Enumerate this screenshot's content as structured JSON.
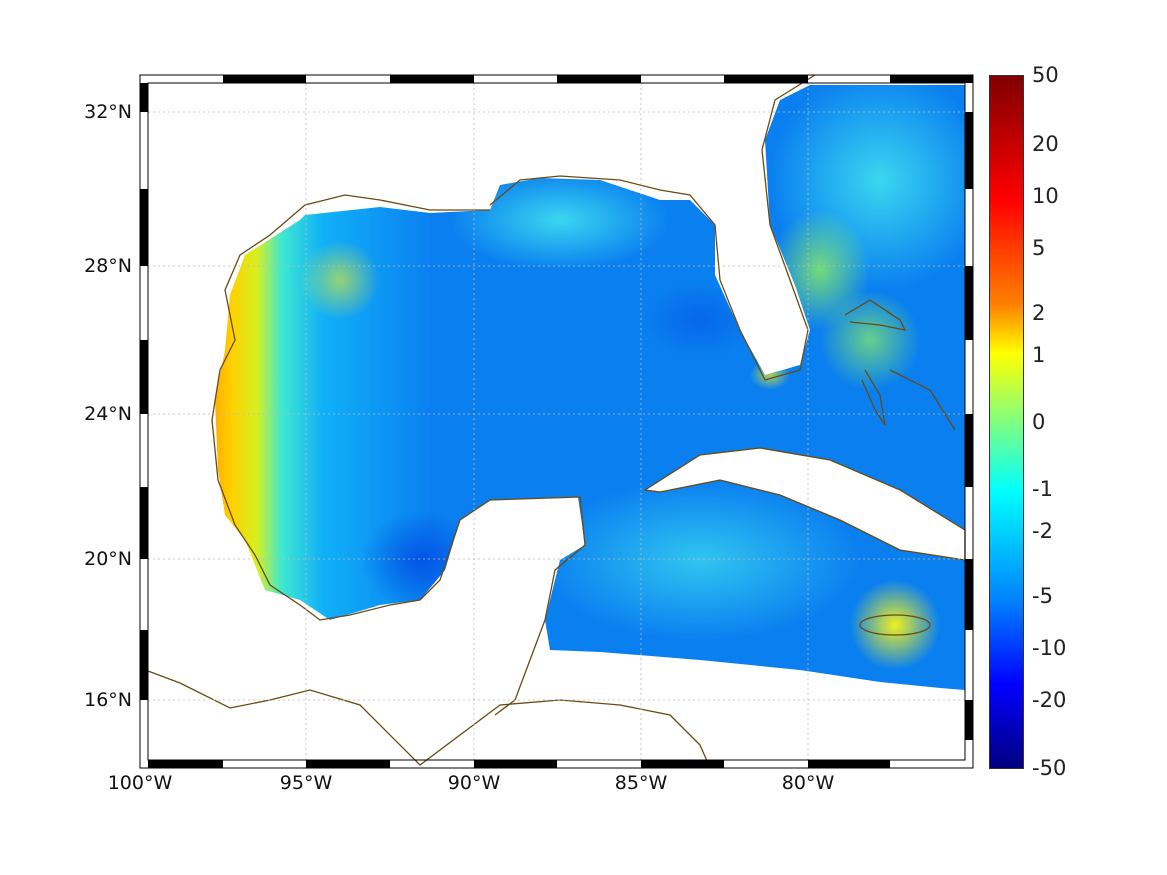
{
  "map": {
    "lat_labels": [
      "32°N",
      "28°N",
      "24°N",
      "20°N",
      "16°N"
    ],
    "lon_labels": [
      "100°W",
      "95°W",
      "90°W",
      "85°W",
      "80°W"
    ],
    "lat_range": [
      14.5,
      33
    ],
    "lon_range": [
      -100,
      -75
    ]
  },
  "colorbar": {
    "labels": [
      "50",
      "20",
      "10",
      "5",
      "2",
      "1",
      "0",
      "-1",
      "-2",
      "-5",
      "-10",
      "-20",
      "-50"
    ],
    "colormap": "jet",
    "range": [
      -50,
      50
    ]
  },
  "colors": {
    "coast": "#6b4a10",
    "ocean_base": "#0a78f0",
    "warm": "#ff9a00"
  }
}
